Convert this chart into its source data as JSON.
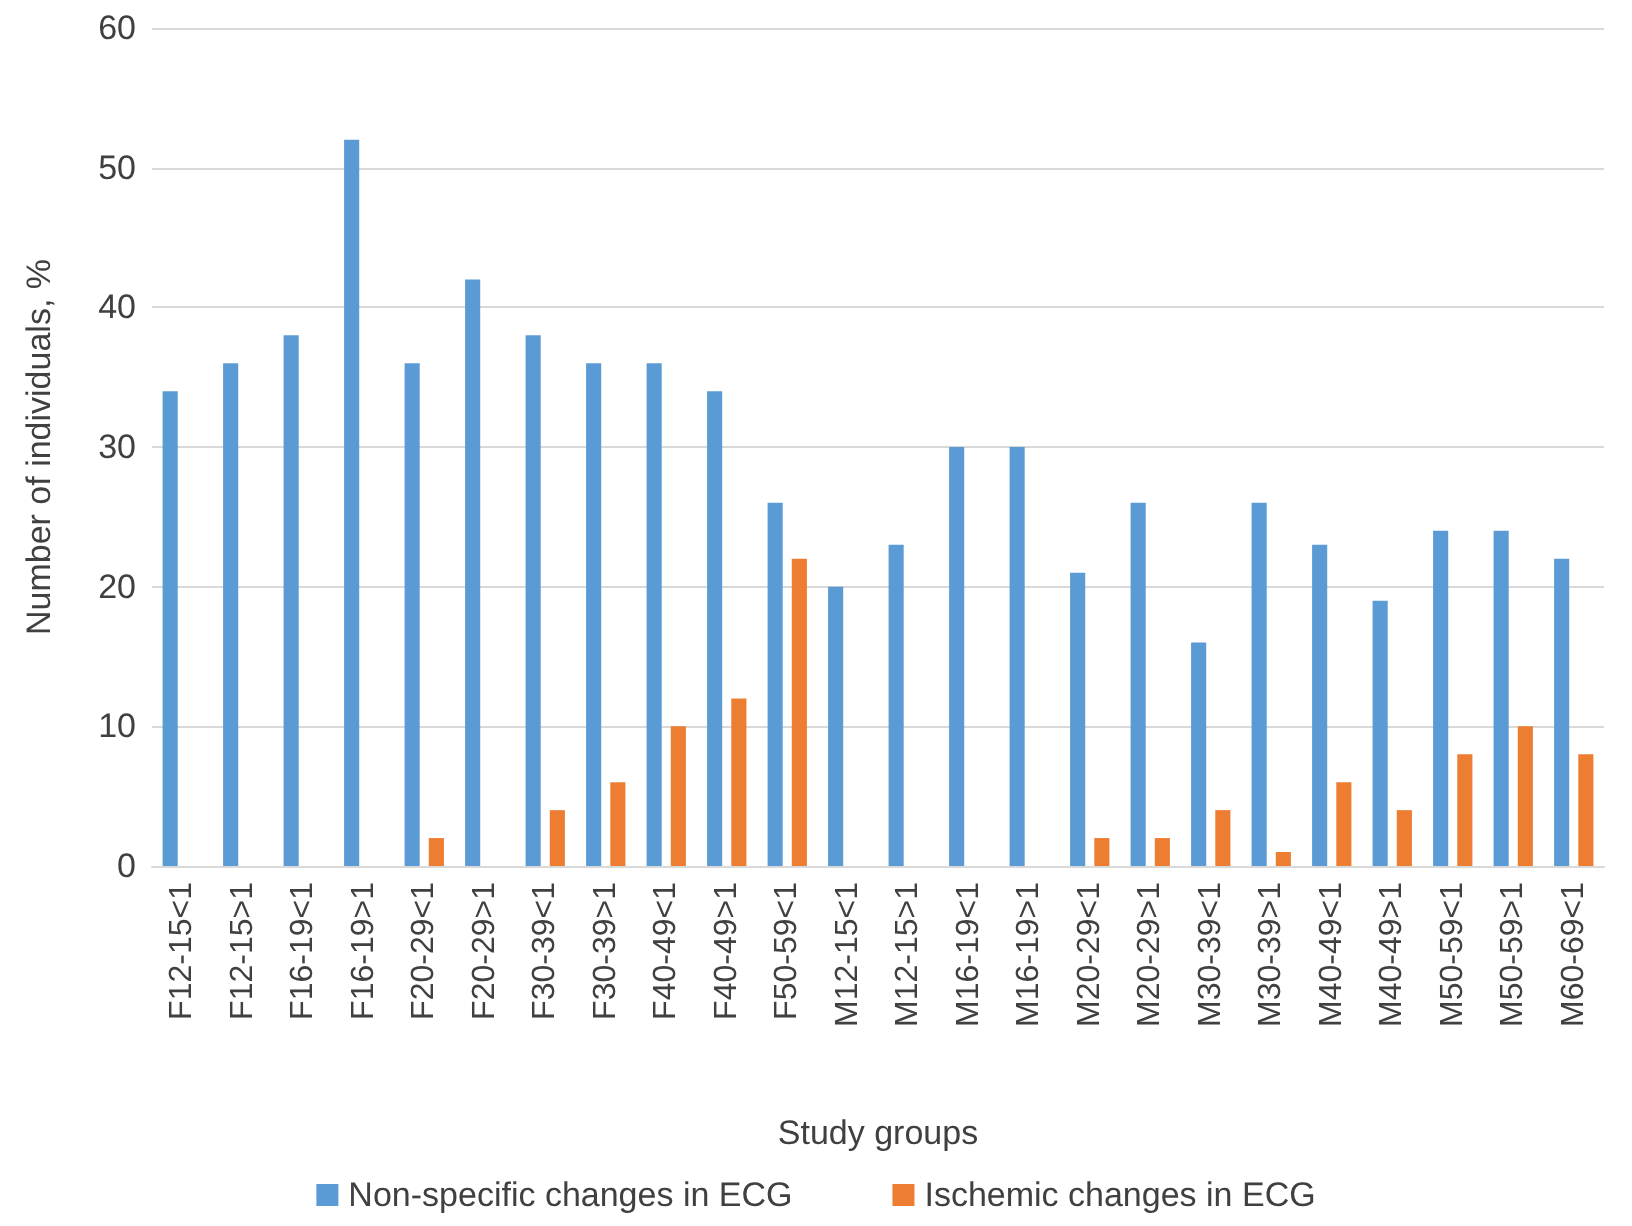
{
  "chart_data": {
    "type": "bar",
    "xlabel": "Study groups",
    "ylabel": "Number of individuals, %",
    "categories": [
      "F12-15<1",
      "F12-15>1",
      "F16-19<1",
      "F16-19>1",
      "F20-29<1",
      "F20-29>1",
      "F30-39<1",
      "F30-39>1",
      "F40-49<1",
      "F40-49>1",
      "F50-59<1",
      "M12-15<1",
      "M12-15>1",
      "M16-19<1",
      "M16-19>1",
      "M20-29<1",
      "M20-29>1",
      "M30-39<1",
      "M30-39>1",
      "M40-49<1",
      "M40-49>1",
      "M50-59<1",
      "M50-59>1",
      "M60-69<1"
    ],
    "series": [
      {
        "name": "Non-specific changes in ECG",
        "color": "#5b9bd5",
        "values": [
          34,
          36,
          38,
          52,
          36,
          42,
          38,
          36,
          36,
          34,
          26,
          20,
          23,
          30,
          30,
          21,
          26,
          16,
          26,
          23,
          19,
          24,
          24,
          22
        ]
      },
      {
        "name": "Ischemic changes in ECG",
        "color": "#ed7d31",
        "values": [
          0,
          0,
          0,
          0,
          2,
          0,
          4,
          6,
          10,
          12,
          22,
          0,
          0,
          0,
          0,
          2,
          2,
          4,
          1,
          6,
          4,
          8,
          10,
          8
        ]
      }
    ],
    "ylim": [
      0,
      60
    ],
    "yticks": [
      0,
      10,
      20,
      30,
      40,
      50,
      60
    ],
    "grid": "y",
    "legend": "bottom"
  }
}
